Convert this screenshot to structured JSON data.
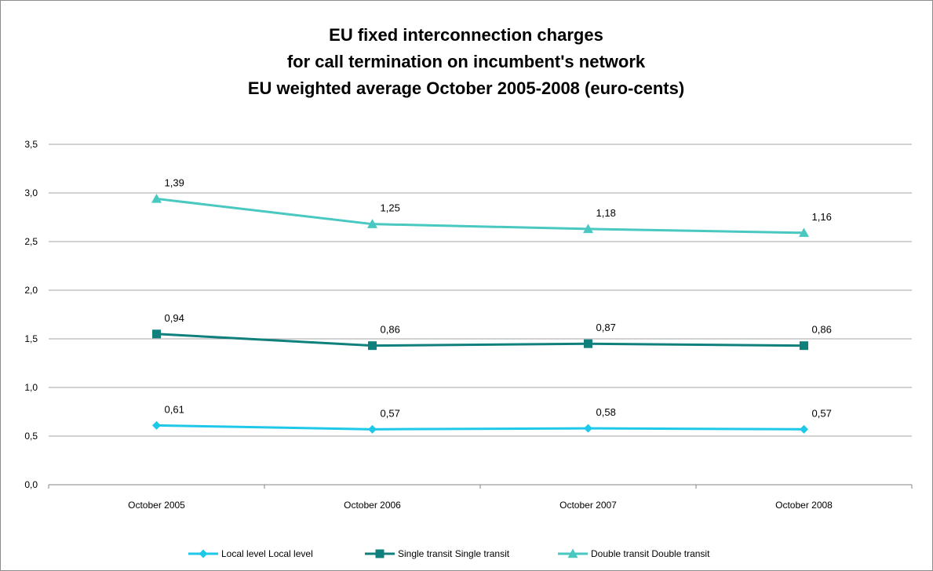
{
  "chart_data": {
    "type": "line",
    "title_lines": [
      "EU fixed interconnection charges",
      "for call termination on incumbent's network",
      "EU weighted average October 2005-2008 (euro-cents)"
    ],
    "categories": [
      "October 2005",
      "October 2006",
      "October 2007",
      "October 2008"
    ],
    "y_ticks": [
      "0,0",
      "0,5",
      "1,0",
      "1,5",
      "2,0",
      "2,5",
      "3,0",
      "3,5"
    ],
    "ylim": [
      0,
      3.5
    ],
    "grid": true,
    "legend_position": "bottom",
    "series": [
      {
        "name": "Local level Local level",
        "color": "#1ec8e8",
        "marker": "diamond",
        "values": [
          0.61,
          0.57,
          0.58,
          0.57
        ],
        "labels": [
          "0,61",
          "0,57",
          "0,58",
          "0,57"
        ]
      },
      {
        "name": "Single transit Single transit",
        "color": "#10807c",
        "marker": "square",
        "values": [
          1.55,
          1.43,
          1.45,
          1.43
        ],
        "labels": [
          "0,94",
          "0,86",
          "0,87",
          "0,86"
        ]
      },
      {
        "name": "Double transit Double transit",
        "color": "#48c8c0",
        "marker": "triangle",
        "values": [
          2.94,
          2.68,
          2.63,
          2.59
        ],
        "labels": [
          "1,39",
          "1,25",
          "1,18",
          "1,16"
        ]
      }
    ]
  }
}
